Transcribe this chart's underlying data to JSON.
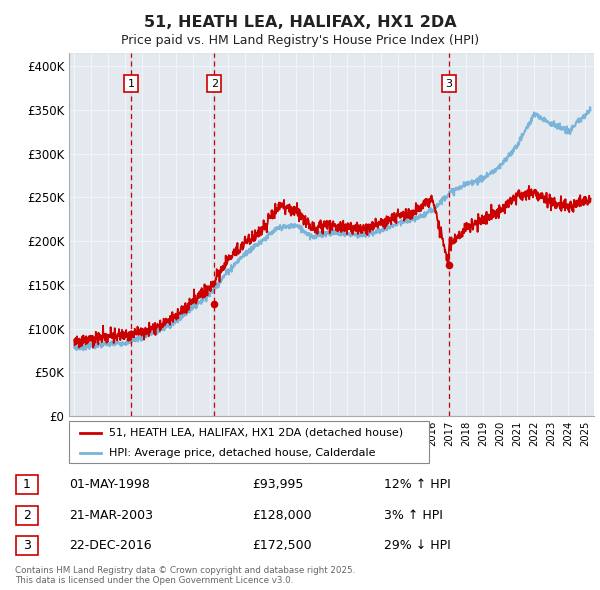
{
  "title": "51, HEATH LEA, HALIFAX, HX1 2DA",
  "subtitle": "Price paid vs. HM Land Registry's House Price Index (HPI)",
  "ylabel_ticks": [
    "£0",
    "£50K",
    "£100K",
    "£150K",
    "£200K",
    "£250K",
    "£300K",
    "£350K",
    "£400K"
  ],
  "ytick_values": [
    0,
    50000,
    100000,
    150000,
    200000,
    250000,
    300000,
    350000,
    400000
  ],
  "ylim": [
    0,
    415000
  ],
  "xlim_start": 1994.7,
  "xlim_end": 2025.5,
  "sale_dates": [
    1998.33,
    2003.22,
    2016.98
  ],
  "sale_prices": [
    93995,
    128000,
    172500
  ],
  "sale_labels": [
    "1",
    "2",
    "3"
  ],
  "hpi_line_color": "#7ab4d8",
  "price_line_color": "#cc0000",
  "sale_marker_color": "#cc0000",
  "vline_color": "#cc0000",
  "background_color": "#ffffff",
  "plot_bg_color": "#f0f0f0",
  "grid_color": "#ffffff",
  "legend_label_price": "51, HEATH LEA, HALIFAX, HX1 2DA (detached house)",
  "legend_label_hpi": "HPI: Average price, detached house, Calderdale",
  "table_data": [
    {
      "num": "1",
      "date": "01-MAY-1998",
      "price": "£93,995",
      "hpi": "12% ↑ HPI"
    },
    {
      "num": "2",
      "date": "21-MAR-2003",
      "price": "£128,000",
      "hpi": "3% ↑ HPI"
    },
    {
      "num": "3",
      "date": "22-DEC-2016",
      "price": "£172,500",
      "hpi": "29% ↓ HPI"
    }
  ],
  "footnote": "Contains HM Land Registry data © Crown copyright and database right 2025.\nThis data is licensed under the Open Government Licence v3.0.",
  "highlight_region_alpha": 0.18,
  "highlight_region_color": "#aacce8"
}
